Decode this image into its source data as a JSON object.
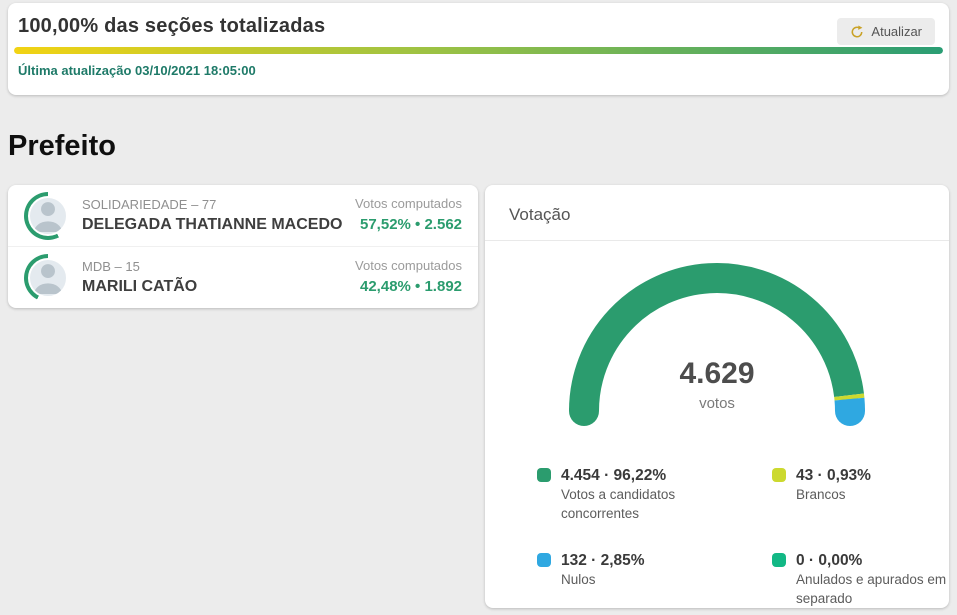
{
  "colors": {
    "green": "#2b9c6e",
    "lime": "#ccd92f",
    "blue": "#2fa8e1",
    "emerald": "#12b885",
    "gold": "#c9a227",
    "progress_gradient_start": "#f2d313",
    "progress_gradient_end": "#2a9d74",
    "update_text": "#1e7a68"
  },
  "header": {
    "title": "100,00% das seções totalizadas",
    "refresh_label": "Atualizar",
    "last_update": "Última atualização 03/10/2021 18:05:00",
    "progress_percent": 100
  },
  "section_title": "Prefeito",
  "candidates": [
    {
      "party": "SOLIDARIEDADE – 77",
      "name": "DELEGADA THATIANNE MACEDO",
      "votes_label": "Votos computados",
      "result": "57,52% • 2.562",
      "percent": 57.52
    },
    {
      "party": "MDB – 15",
      "name": "MARILI CATÃO",
      "votes_label": "Votos computados",
      "result": "42,48% • 1.892",
      "percent": 42.48
    }
  ],
  "votacao": {
    "title": "Votação",
    "total": "4.629",
    "total_label": "votos"
  },
  "chart_data": {
    "type": "pie",
    "subtype": "semicircle-gauge",
    "title": "Votação",
    "center_value": "4.629",
    "center_label": "votos",
    "total": 4629,
    "legend_position": "bottom",
    "segments": [
      {
        "label": "Votos a candidatos concorrentes",
        "value": 4454,
        "percent": 96.22,
        "display": "4.454 · 96,22%",
        "color": "#2b9c6e"
      },
      {
        "label": "Brancos",
        "value": 43,
        "percent": 0.93,
        "display": "43 · 0,93%",
        "color": "#ccd92f"
      },
      {
        "label": "Nulos",
        "value": 132,
        "percent": 2.85,
        "display": "132 · 2,85%",
        "color": "#2fa8e1"
      },
      {
        "label": "Anulados e apurados em separado",
        "value": 0,
        "percent": 0.0,
        "display": "0 · 0,00%",
        "color": "#12b885"
      }
    ]
  }
}
